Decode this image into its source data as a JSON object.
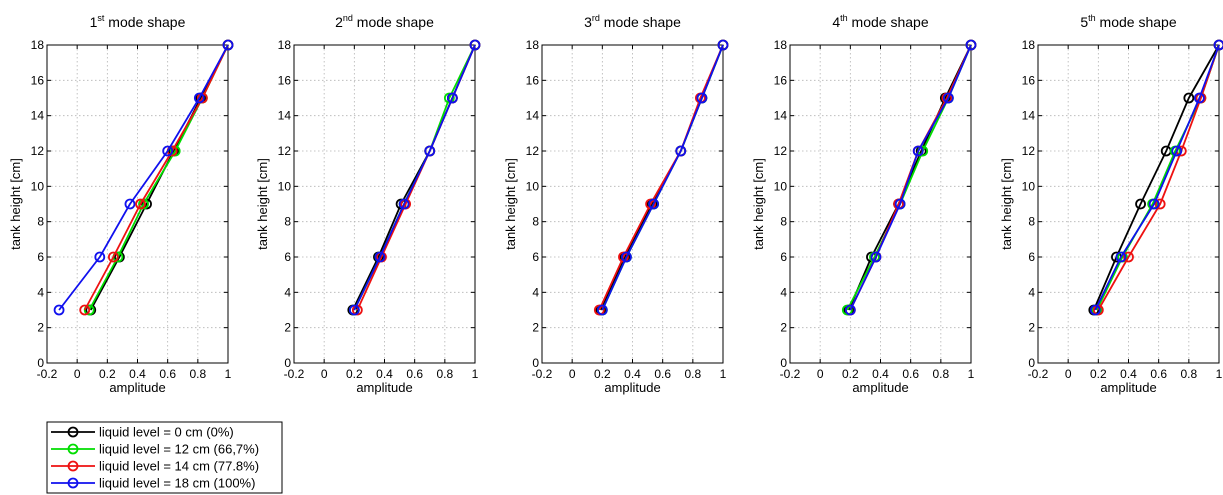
{
  "chart_data": [
    {
      "type": "line",
      "title": "1st mode shape",
      "title_ordinal": "1",
      "title_suffix": "st",
      "title_rest": " mode shape",
      "xlabel": "amplitude",
      "ylabel": "tank height [cm]",
      "xlim": [
        -0.2,
        1
      ],
      "ylim": [
        0,
        18
      ],
      "xticks": [
        -0.2,
        0,
        0.2,
        0.4,
        0.6,
        0.8,
        1
      ],
      "xtick_labels": [
        "-0.2",
        "0",
        "0.2",
        "0.4",
        "0.6",
        "0.8",
        "1"
      ],
      "yticks": [
        0,
        2,
        4,
        6,
        8,
        10,
        12,
        14,
        16,
        18
      ],
      "grid": true,
      "y": [
        3,
        6,
        9,
        12,
        15,
        18
      ],
      "series": [
        {
          "name": "liquid level = 0 cm (0%)",
          "color": "#000000",
          "x": [
            0.09,
            0.28,
            0.46,
            0.64,
            0.82,
            1.0
          ]
        },
        {
          "name": "liquid level = 12 cm (66,7%)",
          "color": "#00dd00",
          "x": [
            0.08,
            0.27,
            0.44,
            0.65,
            0.83,
            1.0
          ]
        },
        {
          "name": "liquid level = 14 cm (77.8%)",
          "color": "#ee1111",
          "x": [
            0.05,
            0.24,
            0.42,
            0.63,
            0.83,
            1.0
          ]
        },
        {
          "name": "liquid level = 18 cm (100%)",
          "color": "#1010ee",
          "x": [
            -0.12,
            0.15,
            0.35,
            0.6,
            0.81,
            1.0
          ]
        }
      ]
    },
    {
      "type": "line",
      "title": "2nd mode shape",
      "title_ordinal": "2",
      "title_suffix": "nd",
      "title_rest": " mode shape",
      "xlabel": "amplitude",
      "ylabel": "tank height [cm]",
      "xlim": [
        -0.2,
        1
      ],
      "ylim": [
        0,
        18
      ],
      "xticks": [
        -0.2,
        0,
        0.2,
        0.4,
        0.6,
        0.8,
        1
      ],
      "xtick_labels": [
        "-0.2",
        "0",
        "0.2",
        "0.4",
        "0.6",
        "0.8",
        "1"
      ],
      "yticks": [
        0,
        2,
        4,
        6,
        8,
        10,
        12,
        14,
        16,
        18
      ],
      "grid": true,
      "y": [
        3,
        6,
        9,
        12,
        15,
        18
      ],
      "series": [
        {
          "name": "liquid level = 0 cm (0%)",
          "color": "#000000",
          "x": [
            0.19,
            0.36,
            0.51,
            0.7,
            0.85,
            1.0
          ]
        },
        {
          "name": "liquid level = 12 cm (66,7%)",
          "color": "#00dd00",
          "x": [
            0.2,
            0.37,
            0.53,
            0.7,
            0.83,
            1.0
          ]
        },
        {
          "name": "liquid level = 14 cm (77.8%)",
          "color": "#ee1111",
          "x": [
            0.22,
            0.38,
            0.54,
            0.7,
            0.85,
            1.0
          ]
        },
        {
          "name": "liquid level = 18 cm (100%)",
          "color": "#1010ee",
          "x": [
            0.2,
            0.37,
            0.53,
            0.7,
            0.85,
            1.0
          ]
        }
      ]
    },
    {
      "type": "line",
      "title": "3rd mode shape",
      "title_ordinal": "3",
      "title_suffix": "rd",
      "title_rest": " mode shape",
      "xlabel": "amplitude",
      "ylabel": "tank height [cm]",
      "xlim": [
        -0.2,
        1
      ],
      "ylim": [
        0,
        18
      ],
      "xticks": [
        -0.2,
        0,
        0.2,
        0.4,
        0.6,
        0.8,
        1
      ],
      "xtick_labels": [
        "-0.2",
        "0",
        "0.2",
        "0.4",
        "0.6",
        "0.8",
        "1"
      ],
      "yticks": [
        0,
        2,
        4,
        6,
        8,
        10,
        12,
        14,
        16,
        18
      ],
      "grid": true,
      "y": [
        3,
        6,
        9,
        12,
        15,
        18
      ],
      "series": [
        {
          "name": "liquid level = 0 cm (0%)",
          "color": "#000000",
          "x": [
            0.19,
            0.35,
            0.53,
            0.72,
            0.86,
            1.0
          ]
        },
        {
          "name": "liquid level = 12 cm (66,7%)",
          "color": "#00dd00",
          "x": [
            0.2,
            0.36,
            0.54,
            0.72,
            0.86,
            1.0
          ]
        },
        {
          "name": "liquid level = 14 cm (77.8%)",
          "color": "#ee1111",
          "x": [
            0.18,
            0.34,
            0.52,
            0.72,
            0.85,
            1.0
          ]
        },
        {
          "name": "liquid level = 18 cm (100%)",
          "color": "#1010ee",
          "x": [
            0.2,
            0.36,
            0.54,
            0.72,
            0.86,
            1.0
          ]
        }
      ]
    },
    {
      "type": "line",
      "title": "4th mode shape",
      "title_ordinal": "4",
      "title_suffix": "th",
      "title_rest": " mode shape",
      "xlabel": "amplitude",
      "ylabel": "tank height [cm]",
      "xlim": [
        -0.2,
        1
      ],
      "ylim": [
        0,
        18
      ],
      "xticks": [
        -0.2,
        0,
        0.2,
        0.4,
        0.6,
        0.8,
        1
      ],
      "xtick_labels": [
        "-0.2",
        "0",
        "0.2",
        "0.4",
        "0.6",
        "0.8",
        "1"
      ],
      "yticks": [
        0,
        2,
        4,
        6,
        8,
        10,
        12,
        14,
        16,
        18
      ],
      "grid": true,
      "y": [
        3,
        6,
        9,
        12,
        15,
        18
      ],
      "series": [
        {
          "name": "liquid level = 0 cm (0%)",
          "color": "#000000",
          "x": [
            0.19,
            0.34,
            0.52,
            0.67,
            0.83,
            1.0
          ]
        },
        {
          "name": "liquid level = 12 cm (66,7%)",
          "color": "#00dd00",
          "x": [
            0.18,
            0.36,
            0.53,
            0.68,
            0.85,
            1.0
          ]
        },
        {
          "name": "liquid level = 14 cm (77.8%)",
          "color": "#ee1111",
          "x": [
            0.2,
            0.37,
            0.52,
            0.65,
            0.84,
            1.0
          ]
        },
        {
          "name": "liquid level = 18 cm (100%)",
          "color": "#1010ee",
          "x": [
            0.2,
            0.37,
            0.53,
            0.65,
            0.85,
            1.0
          ]
        }
      ]
    },
    {
      "type": "line",
      "title": "5th mode shape",
      "title_ordinal": "5",
      "title_suffix": "th",
      "title_rest": " mode shape",
      "xlabel": "amplitude",
      "ylabel": "tank height [cm]",
      "xlim": [
        -0.2,
        1
      ],
      "ylim": [
        0,
        18
      ],
      "xticks": [
        -0.2,
        0,
        0.2,
        0.4,
        0.6,
        0.8,
        1
      ],
      "xtick_labels": [
        "-0.2",
        "0",
        "0.2",
        "0.4",
        "0.6",
        "0.8",
        "1"
      ],
      "yticks": [
        0,
        2,
        4,
        6,
        8,
        10,
        12,
        14,
        16,
        18
      ],
      "grid": true,
      "y": [
        3,
        6,
        9,
        12,
        15,
        18
      ],
      "series": [
        {
          "name": "liquid level = 0 cm (0%)",
          "color": "#000000",
          "x": [
            0.17,
            0.32,
            0.48,
            0.65,
            0.8,
            1.0
          ]
        },
        {
          "name": "liquid level = 12 cm (66,7%)",
          "color": "#00dd00",
          "x": [
            0.19,
            0.36,
            0.56,
            0.71,
            0.88,
            1.0
          ]
        },
        {
          "name": "liquid level = 14 cm (77.8%)",
          "color": "#ee1111",
          "x": [
            0.2,
            0.4,
            0.61,
            0.75,
            0.88,
            1.0
          ]
        },
        {
          "name": "liquid level = 18 cm (100%)",
          "color": "#1010ee",
          "x": [
            0.18,
            0.35,
            0.57,
            0.72,
            0.87,
            1.0
          ]
        }
      ]
    }
  ],
  "legend": {
    "placement": "bottom-left",
    "entries": [
      {
        "label": "liquid level = 0 cm (0%)",
        "color": "#000000"
      },
      {
        "label": "liquid level = 12 cm (66,7%)",
        "color": "#00dd00"
      },
      {
        "label": "liquid level = 14 cm (77.8%)",
        "color": "#ee1111"
      },
      {
        "label": "liquid level = 18 cm (100%)",
        "color": "#1010ee"
      }
    ]
  }
}
